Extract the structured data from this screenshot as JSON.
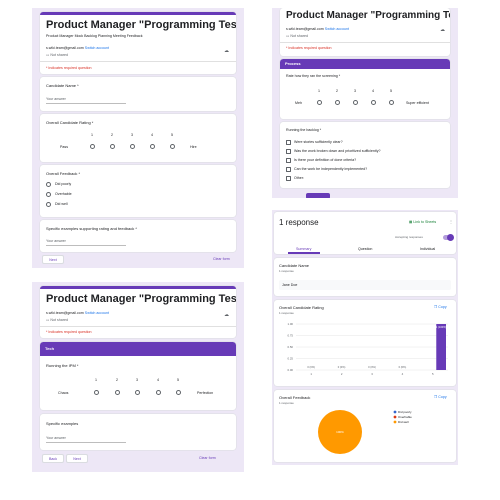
{
  "form": {
    "title": "Product Manager \"Programming Test\"",
    "description": "Product Manager Mock Backlog Planning Meeting Feedback",
    "email": "s.wiki.team@gmail.com",
    "switch_account": "Switch account",
    "not_shared": "Not shared",
    "required_note": "* Indicates required question"
  },
  "p1": {
    "q1_label": "Candidate Name *",
    "q1_placeholder": "Your answer",
    "q2_label": "Overall Candidate Rating *",
    "scale": [
      "1",
      "2",
      "3",
      "4",
      "5"
    ],
    "q2_low": "Pass",
    "q2_high": "Hire",
    "q3_label": "Overall Feedback *",
    "q3_options": [
      "Did poorly",
      "Overhable",
      "Did well"
    ],
    "q4_label": "Specific examples supporting rating and feedback *",
    "q4_placeholder": "Your answer",
    "next_label": "Next",
    "clear_label": "Clear form"
  },
  "p2": {
    "title": "Product Manager \"Programming Test\"",
    "email": "s.wiki.team@gmail.com",
    "switch_account": "Switch account",
    "not_shared": "Not shared",
    "required_note": "* Indicates required question",
    "section": "Process",
    "q1_label": "Rate how they ran the screening *",
    "scale": [
      "1",
      "2",
      "3",
      "4",
      "5"
    ],
    "q1_low": "Meh",
    "q1_high": "Super efficient",
    "q2_label": "Running the backlog *",
    "q2_options": [
      "Were stories sufficiently clear?",
      "Was the work broken down and prioritized sufficiently?",
      "Is there your definition of done criteria?",
      "Can the work be independently implemented?",
      "Other:"
    ]
  },
  "p3": {
    "title": "Product Manager \"Programming Test\"",
    "email": "s.wiki.team@gmail.com",
    "switch_account": "Switch account",
    "not_shared": "Not shared",
    "required_note": "* Indicates required question",
    "section": "Tech",
    "q1_label": "Running the IPM *",
    "scale": [
      "1",
      "2",
      "3",
      "4",
      "5"
    ],
    "q1_low": "Chaos",
    "q1_high": "Perfection",
    "q2_label": "Specific examples",
    "q2_placeholder": "Your answer",
    "back_label": "Back",
    "next_label": "Next",
    "clear_label": "Clear form"
  },
  "p4": {
    "responses": "1 response",
    "link_sheets": "Link to Sheets",
    "accepting": "Accepting responses",
    "tabs": [
      "Summary",
      "Question",
      "Individual"
    ],
    "q1_label": "Candidate Name",
    "q1_count": "1 response",
    "q1_answer": "Jane Doe",
    "q2_label": "Overall Candidate Rating",
    "q2_count": "1 response",
    "copy_label": "Copy",
    "q3_label": "Overall Feedback",
    "q3_count": "1 response",
    "colors": {
      "accent": "#673ab7",
      "pie": "#ff9800",
      "red": "#d93025"
    }
  },
  "chart_data": [
    {
      "type": "bar",
      "title": "Overall Candidate Rating",
      "categories": [
        "1",
        "2",
        "3",
        "4",
        "5"
      ],
      "values": [
        0,
        0,
        0,
        0,
        1
      ],
      "data_labels": [
        "0 (0%)",
        "0 (0%)",
        "0 (0%)",
        "0 (0%)",
        "1 (100%)"
      ],
      "yticks": [
        "1.00",
        "0.75",
        "0.50",
        "0.25",
        "0.00"
      ],
      "ylim": [
        0,
        1
      ]
    },
    {
      "type": "pie",
      "title": "Overall Feedback",
      "categories": [
        "Did poorly",
        "Overhable",
        "Did well"
      ],
      "values": [
        0,
        0,
        1
      ],
      "colors": [
        "#3366cc",
        "#dc3912",
        "#ff9900"
      ],
      "slice_label": "100%"
    }
  ]
}
